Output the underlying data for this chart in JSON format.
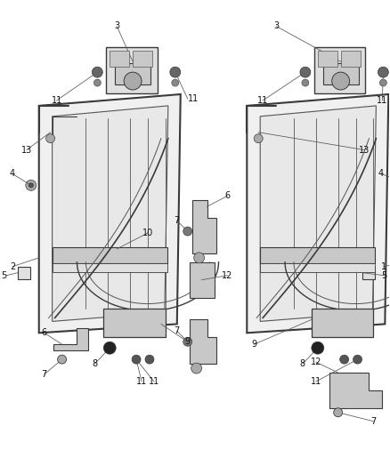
{
  "bg_color": "#ffffff",
  "lc": "#3a3a3a",
  "lc2": "#555555",
  "gray1": "#c8c8c8",
  "gray2": "#e0e0e0",
  "gray3": "#aaaaaa",
  "dark": "#444444",
  "figsize": [
    4.38,
    5.33
  ],
  "dpi": 100,
  "lw_outer": 1.5,
  "lw_inner": 0.8,
  "lw_slat": 0.6,
  "label_fs": 7.0
}
